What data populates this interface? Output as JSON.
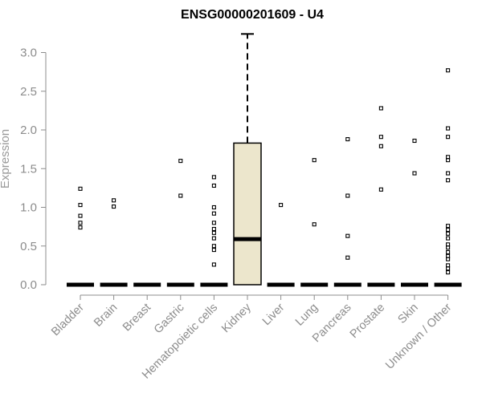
{
  "chart_data": {
    "type": "box",
    "title": "ENSG00000201609 - U4",
    "ylabel": "Expression",
    "xlabel": "",
    "ylim": [
      0,
      3.2
    ],
    "yticks": [
      "0.0",
      "0.5",
      "1.0",
      "1.5",
      "2.0",
      "2.5",
      "3.0"
    ],
    "categories": [
      "Bladder",
      "Brain",
      "Breast",
      "Gastric",
      "Hematopoietic cells",
      "Kidney",
      "Liver",
      "Lung",
      "Pancreas",
      "Prostate",
      "Skin",
      "Unknown / Other"
    ],
    "box_fill": "#ece6cc",
    "boxes": [
      {
        "median": 0,
        "q1": 0,
        "q3": 0,
        "whisker_low": 0,
        "whisker_high": 0,
        "outliers": [
          1.24,
          1.03,
          0.89,
          0.8,
          0.74
        ]
      },
      {
        "median": 0,
        "q1": 0,
        "q3": 0,
        "whisker_low": 0,
        "whisker_high": 0,
        "outliers": [
          1.09,
          1.01
        ]
      },
      {
        "median": 0,
        "q1": 0,
        "q3": 0,
        "whisker_low": 0,
        "whisker_high": 0,
        "outliers": []
      },
      {
        "median": 0,
        "q1": 0,
        "q3": 0,
        "whisker_low": 0,
        "whisker_high": 0,
        "outliers": [
          1.6,
          1.15
        ]
      },
      {
        "median": 0,
        "q1": 0,
        "q3": 0,
        "whisker_low": 0,
        "whisker_high": 0,
        "outliers": [
          1.39,
          1.28,
          1.0,
          0.92,
          0.8,
          0.72,
          0.67,
          0.6,
          0.5,
          0.45,
          0.26
        ]
      },
      {
        "median": 0.59,
        "q1": 0,
        "q3": 1.83,
        "whisker_low": 0,
        "whisker_high": 3.24,
        "outliers": []
      },
      {
        "median": 0,
        "q1": 0,
        "q3": 0,
        "whisker_low": 0,
        "whisker_high": 0,
        "outliers": [
          1.03
        ]
      },
      {
        "median": 0,
        "q1": 0,
        "q3": 0,
        "whisker_low": 0,
        "whisker_high": 0,
        "outliers": [
          1.61,
          0.78
        ]
      },
      {
        "median": 0,
        "q1": 0,
        "q3": 0,
        "whisker_low": 0,
        "whisker_high": 0,
        "outliers": [
          1.88,
          1.15,
          0.63,
          0.35
        ]
      },
      {
        "median": 0,
        "q1": 0,
        "q3": 0,
        "whisker_low": 0,
        "whisker_high": 0,
        "outliers": [
          2.28,
          1.91,
          1.79,
          1.23
        ]
      },
      {
        "median": 0,
        "q1": 0,
        "q3": 0,
        "whisker_low": 0,
        "whisker_high": 0,
        "outliers": [
          1.86,
          1.44
        ]
      },
      {
        "median": 0,
        "q1": 0,
        "q3": 0,
        "whisker_low": 0,
        "whisker_high": 0,
        "outliers": [
          2.77,
          2.02,
          1.91,
          1.65,
          1.61,
          1.44,
          1.35,
          0.76,
          0.71,
          0.66,
          0.6,
          0.52,
          0.48,
          0.42,
          0.37,
          0.33,
          0.25,
          0.21,
          0.16
        ]
      }
    ]
  }
}
